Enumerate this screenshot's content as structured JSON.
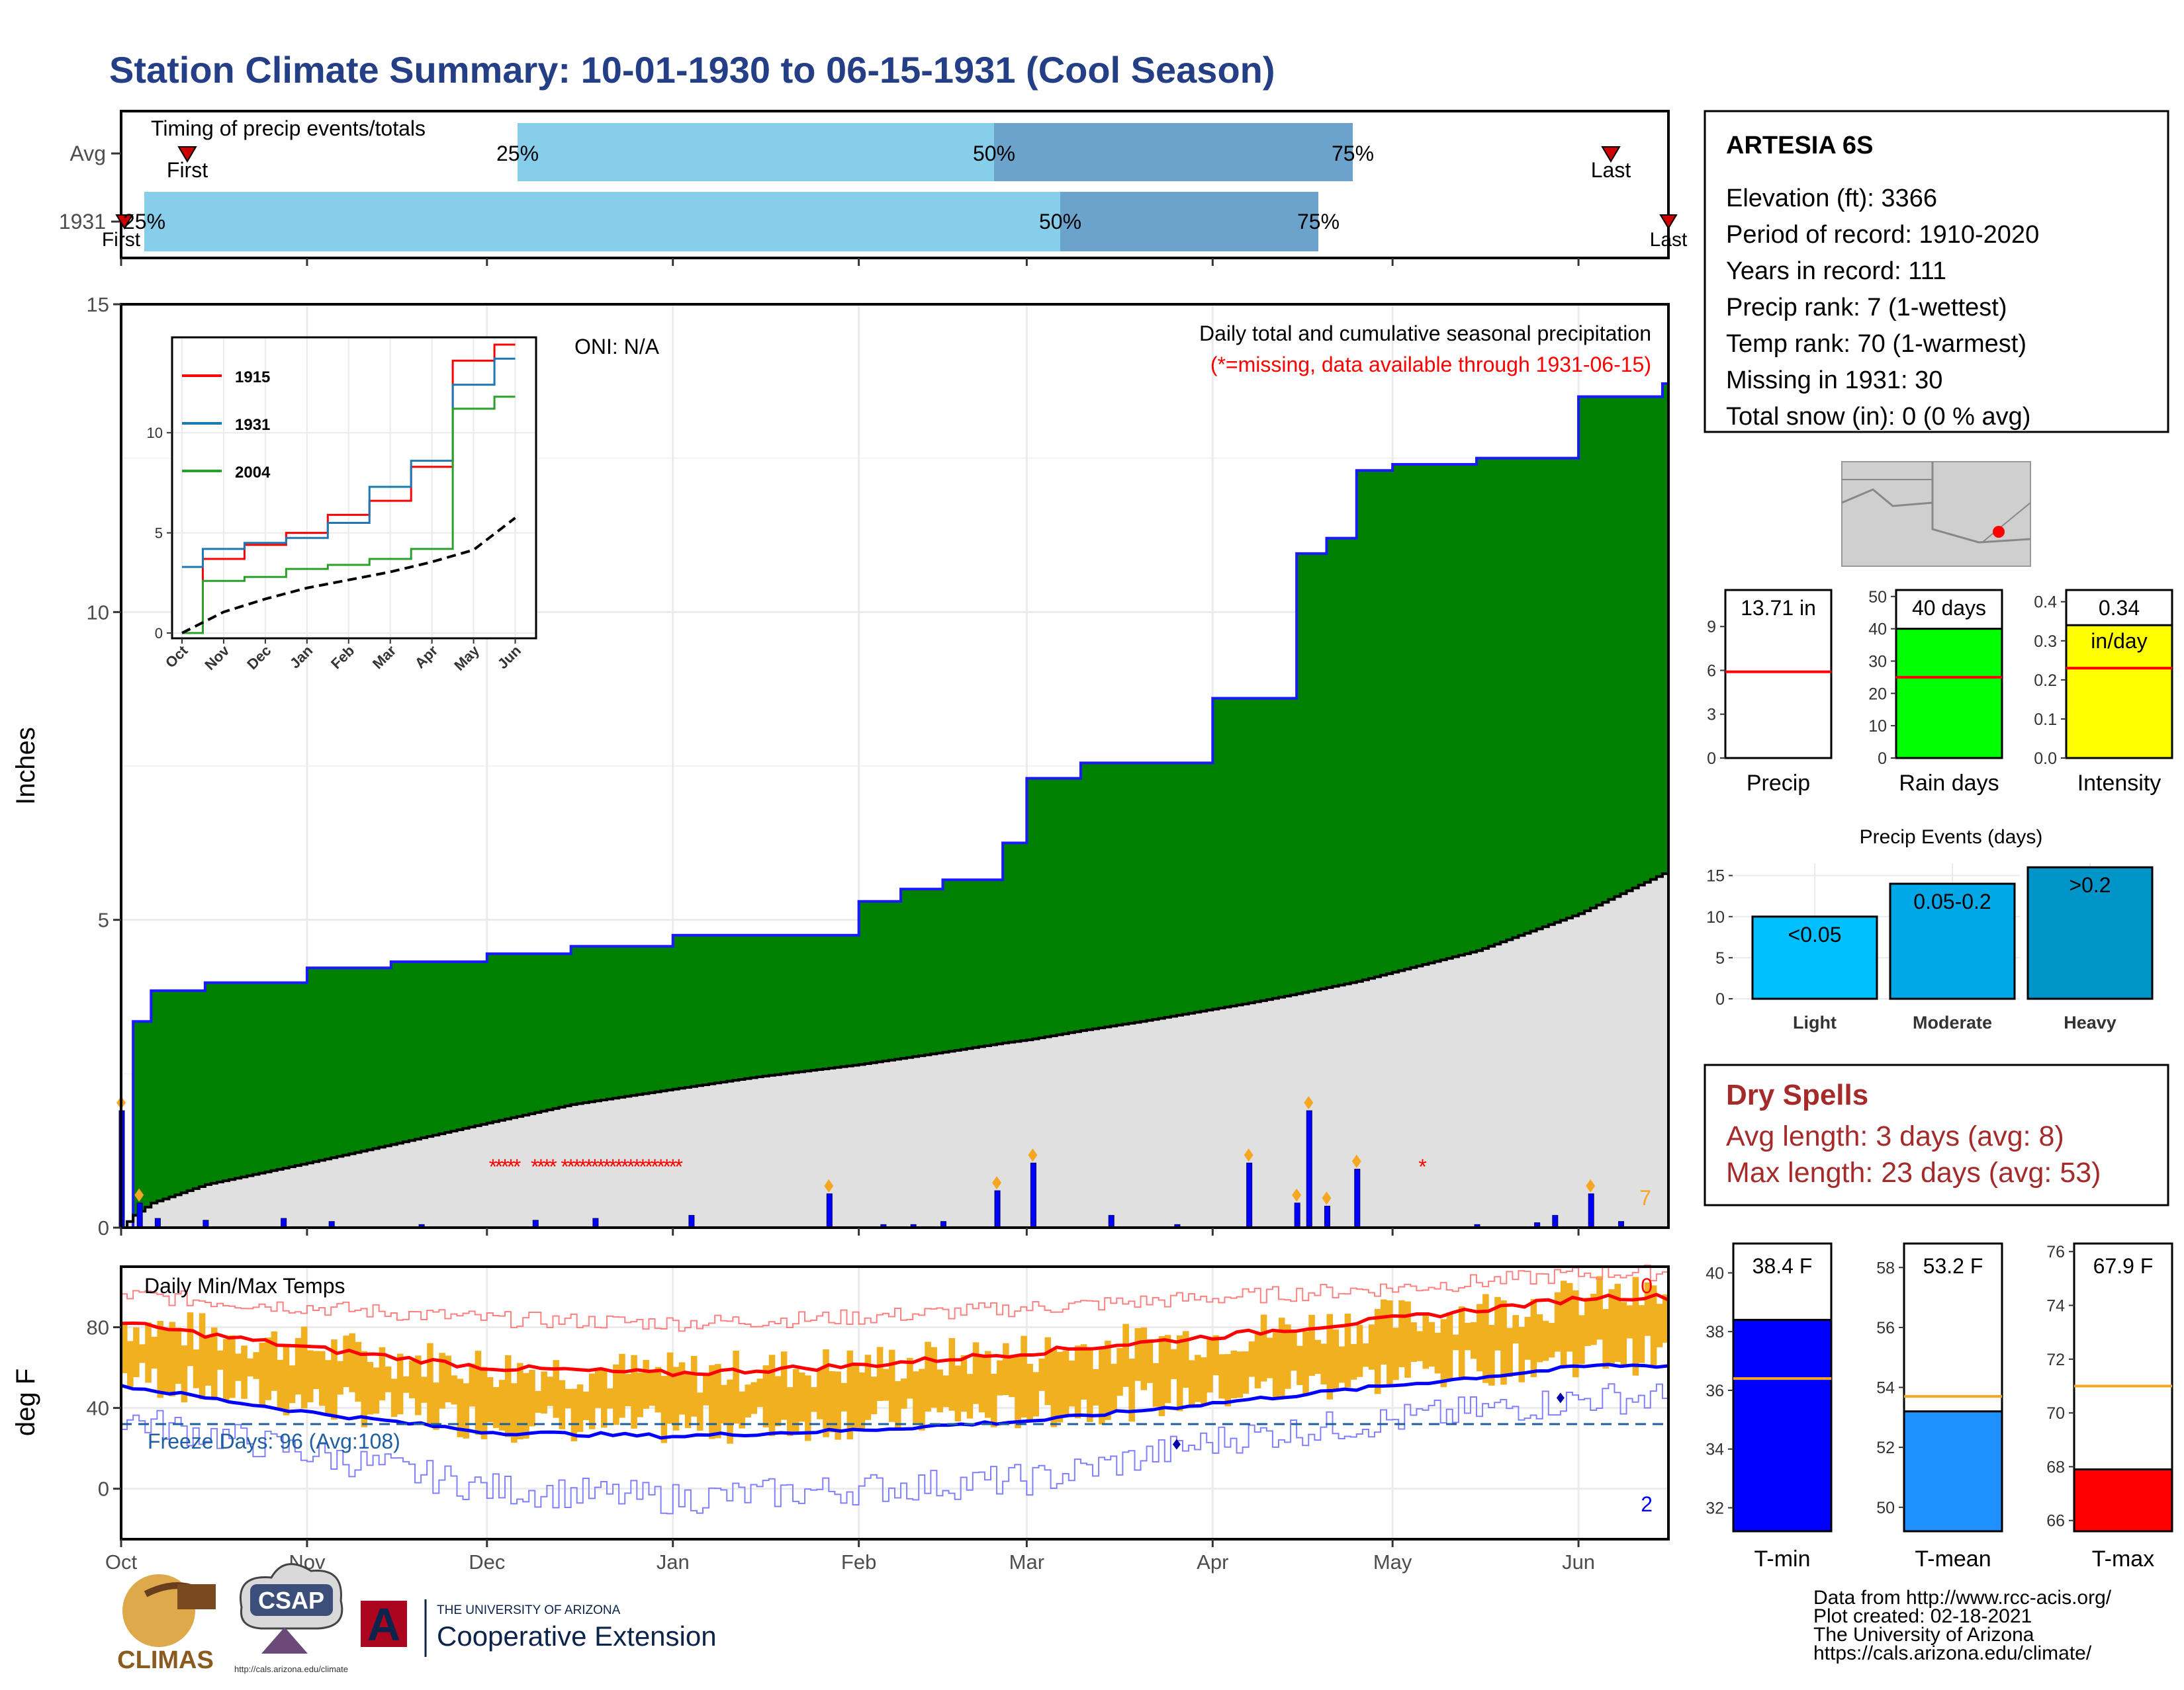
{
  "title": "Station Climate Summary: 10-01-1930 to 06-15-1931 (Cool Season)",
  "colors": {
    "title": "#253f87",
    "green": "#008000",
    "normal_fill": "#e0e0e0",
    "bar_blue": "#0000ff",
    "light_blue": "#87ceeb",
    "mid_blue": "#6ba3cc",
    "orange": "#f5a623",
    "red": "#ff0000",
    "dry_spell": "#a52a2a"
  },
  "timing": {
    "title": "Timing of precip events/totals",
    "rows": [
      "Avg",
      "1931"
    ],
    "avg": {
      "p25": "25%",
      "p50": "50%",
      "p75": "75%",
      "first": "First",
      "last": "Last"
    },
    "y1931": {
      "p25": "25%",
      "p50": "50%",
      "p75": "75%",
      "first": "First",
      "last": "Last"
    }
  },
  "main": {
    "ylabel": "Inches",
    "oni": "ONI: N/A",
    "subtitle": "Daily total and cumulative seasonal precipitation",
    "missing_note": "(*=missing, data available through 1931-06-15)",
    "count_label": "7",
    "yticks": [
      "0",
      "5",
      "10",
      "15"
    ]
  },
  "inset": {
    "legend": [
      "1915",
      "1931",
      "2004"
    ],
    "yticks": [
      "0",
      "5",
      "10"
    ],
    "xticks": [
      "Oct",
      "Nov",
      "Dec",
      "Jan",
      "Feb",
      "Mar",
      "Apr",
      "May",
      "Jun"
    ]
  },
  "temps": {
    "title": "Daily Min/Max Temps",
    "ylabel": "deg F",
    "freeze": "Freeze Days: 96 (Avg:108)",
    "top_count": "0",
    "bottom_count": "2",
    "yticks": [
      "0",
      "40",
      "80"
    ]
  },
  "xaxis": [
    "Oct",
    "Nov",
    "Dec",
    "Jan",
    "Feb",
    "Mar",
    "Apr",
    "May",
    "Jun"
  ],
  "station": {
    "name": "ARTESIA 6S",
    "lines": [
      "Elevation (ft): 3366",
      "Period of record: 1910-2020",
      "Years in record: 111",
      "Precip rank: 7 (1-wettest)",
      "Temp rank: 70 (1-warmest)",
      "Missing in 1931: 30",
      "Total snow (in): 0 (0 % avg)"
    ]
  },
  "mini": {
    "precip": {
      "label": "Precip",
      "value": "13.71 in",
      "yticks": [
        "0",
        "3",
        "6",
        "9"
      ]
    },
    "rain_days": {
      "label": "Rain days",
      "value": "40 days",
      "yticks": [
        "0",
        "10",
        "20",
        "30",
        "40",
        "50"
      ]
    },
    "intensity": {
      "label": "Intensity",
      "value": "0.34",
      "unit": "in/day",
      "yticks": [
        "0.0",
        "0.1",
        "0.2",
        "0.3",
        "0.4"
      ]
    }
  },
  "events": {
    "title": "Precip Events (days)",
    "yticks": [
      "0",
      "5",
      "10",
      "15"
    ],
    "bars": [
      {
        "cat": "Light",
        "label": "<0.05"
      },
      {
        "cat": "Moderate",
        "label": "0.05-0.2"
      },
      {
        "cat": "Heavy",
        "label": ">0.2"
      }
    ]
  },
  "dry": {
    "title": "Dry Spells",
    "avg": "Avg length: 3 days (avg: 8)",
    "max": "Max length: 23 days (avg: 53)"
  },
  "temp_bars": {
    "tmin": {
      "label": "T-min",
      "value": "38.4 F",
      "yticks": [
        "32",
        "34",
        "36",
        "38",
        "40"
      ]
    },
    "tmean": {
      "label": "T-mean",
      "value": "53.2 F",
      "yticks": [
        "50",
        "52",
        "54",
        "56",
        "58"
      ]
    },
    "tmax": {
      "label": "T-max",
      "value": "67.9 F",
      "yticks": [
        "66",
        "68",
        "70",
        "72",
        "74",
        "76"
      ]
    }
  },
  "footer": {
    "lines": [
      "Data from http://www.rcc-acis.org/",
      "Plot created: 02-18-2021",
      "The University of Arizona",
      "https://cals.arizona.edu/climate/"
    ],
    "climas": "CLIMAS",
    "csap": "CSAP",
    "csap_url": "http://cals.arizona.edu/climate",
    "ua_small": "THE UNIVERSITY OF ARIZONA",
    "ua_big": "Cooperative Extension"
  },
  "chart_data": [
    {
      "type": "area",
      "title": "Daily total and cumulative seasonal precipitation",
      "ylabel": "Inches",
      "ylim": [
        0,
        15
      ],
      "x": [
        "10-01",
        "10-03",
        "10-06",
        "10-15",
        "11-01",
        "11-15",
        "12-01",
        "12-15",
        "01-01",
        "01-15",
        "02-01",
        "02-08",
        "02-15",
        "02-25",
        "03-01",
        "03-10",
        "03-20",
        "04-01",
        "04-07",
        "04-15",
        "04-20",
        "04-25",
        "05-01",
        "05-15",
        "06-01",
        "06-15"
      ],
      "series": [
        {
          "name": "1931",
          "values": [
            0.0,
            3.35,
            3.85,
            3.98,
            4.22,
            4.32,
            4.45,
            4.57,
            4.75,
            4.75,
            5.3,
            5.5,
            5.65,
            6.25,
            7.3,
            7.55,
            7.55,
            8.6,
            8.6,
            10.95,
            11.2,
            12.3,
            12.4,
            12.5,
            13.5,
            13.71
          ]
        },
        {
          "name": "Average",
          "values": [
            0.0,
            0.2,
            0.4,
            0.7,
            1.05,
            1.35,
            1.7,
            2.0,
            2.25,
            2.45,
            2.65,
            2.75,
            2.85,
            3.0,
            3.05,
            3.2,
            3.35,
            3.55,
            3.65,
            3.8,
            3.9,
            4.0,
            4.15,
            4.5,
            5.1,
            5.75
          ]
        }
      ]
    },
    {
      "type": "bar",
      "title": "Daily precipitation",
      "ylabel": "Inches",
      "x": [
        "10-01",
        "10-04",
        "10-07",
        "10-15",
        "10-28",
        "11-05",
        "11-20",
        "12-09",
        "12-19",
        "01-04",
        "01-27",
        "02-05",
        "02-10",
        "02-15",
        "02-24",
        "03-02",
        "03-15",
        "03-26",
        "04-07",
        "04-15",
        "04-17",
        "04-20",
        "04-25",
        "05-15",
        "05-25",
        "05-28",
        "06-03",
        "06-08"
      ],
      "values": [
        1.9,
        0.4,
        0.15,
        0.12,
        0.15,
        0.1,
        0.05,
        0.12,
        0.15,
        0.2,
        0.55,
        0.05,
        0.05,
        0.1,
        0.6,
        1.05,
        0.2,
        0.05,
        1.05,
        0.4,
        1.9,
        0.35,
        0.95,
        0.05,
        0.08,
        0.2,
        0.55,
        0.1
      ]
    },
    {
      "type": "line",
      "title": "Inset: cumulative precipitation",
      "x": [
        "Oct",
        "Nov",
        "Dec",
        "Jan",
        "Feb",
        "Mar",
        "Apr",
        "May",
        "Jun"
      ],
      "ylim": [
        0,
        14.5
      ],
      "series": [
        {
          "name": "1915",
          "values": [
            0.0,
            3.7,
            4.4,
            5.0,
            5.9,
            6.6,
            8.3,
            13.6,
            14.4
          ]
        },
        {
          "name": "1931",
          "values": [
            3.3,
            4.2,
            4.5,
            4.75,
            5.5,
            7.3,
            8.6,
            12.4,
            13.7
          ]
        },
        {
          "name": "2004",
          "values": [
            0.0,
            2.6,
            2.8,
            3.2,
            3.4,
            3.7,
            4.2,
            11.2,
            11.8
          ]
        },
        {
          "name": "Average",
          "values": [
            0.0,
            1.05,
            1.7,
            2.25,
            2.65,
            3.05,
            3.55,
            4.15,
            5.75
          ]
        }
      ]
    },
    {
      "type": "line",
      "title": "Daily Min/Max Temps",
      "ylabel": "deg F",
      "x": [
        "Oct",
        "Nov",
        "Dec",
        "Jan",
        "Feb",
        "Mar",
        "Apr",
        "May",
        "Jun"
      ],
      "series": [
        {
          "name": "Record high",
          "values": [
            96,
            90,
            84,
            82,
            85,
            90,
            95,
            100,
            107
          ]
        },
        {
          "name": "Normal high",
          "values": [
            82,
            70,
            60,
            57,
            61,
            68,
            76,
            85,
            95
          ]
        },
        {
          "name": "Normal low",
          "values": [
            51,
            38,
            28,
            26,
            29,
            34,
            43,
            52,
            61
          ]
        },
        {
          "name": "Record low",
          "values": [
            35,
            18,
            0,
            -5,
            0,
            5,
            25,
            35,
            45
          ]
        }
      ]
    },
    {
      "type": "bar",
      "title": "Precip Events (days)",
      "categories": [
        "Light",
        "Moderate",
        "Heavy"
      ],
      "values": [
        10,
        14,
        16
      ],
      "ylim": [
        0,
        16.5
      ]
    },
    {
      "type": "bar",
      "title": "Season summary",
      "categories": [
        "Precip",
        "Rain days",
        "Intensity",
        "T-min",
        "T-mean",
        "T-max"
      ],
      "values": [
        13.71,
        40,
        0.34,
        38.4,
        53.2,
        67.9
      ],
      "averages": [
        5.9,
        25,
        0.23,
        36.4,
        53.7,
        71.0
      ]
    }
  ]
}
